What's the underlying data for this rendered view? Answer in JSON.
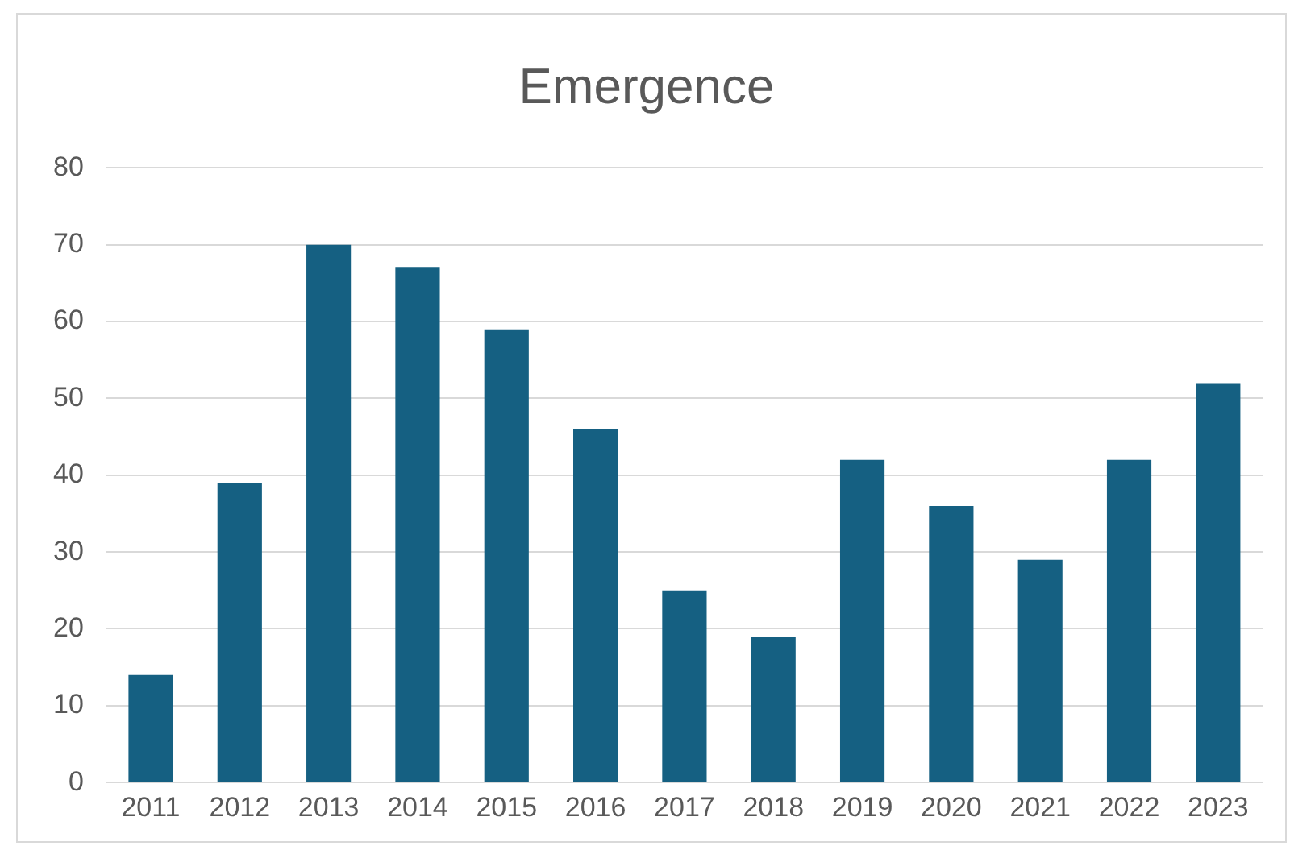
{
  "chart_data": {
    "type": "bar",
    "title": "Emergence",
    "categories": [
      "2011",
      "2012",
      "2013",
      "2014",
      "2015",
      "2016",
      "2017",
      "2018",
      "2019",
      "2020",
      "2021",
      "2022",
      "2023"
    ],
    "values": [
      14,
      39,
      70,
      67,
      59,
      46,
      25,
      19,
      42,
      36,
      29,
      42,
      52
    ],
    "color": "#156082",
    "ylim": [
      0,
      80
    ],
    "yticks": [
      0,
      10,
      20,
      30,
      40,
      50,
      60,
      70,
      80
    ],
    "grid": "y",
    "legend": false
  }
}
